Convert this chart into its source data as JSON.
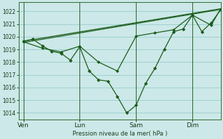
{
  "background_color": "#cce8e8",
  "grid_color": "#99cccc",
  "line_color": "#1a5c1a",
  "ylabel": "Pression niveau de la mer( hPa )",
  "ylim": [
    1013.5,
    1022.7
  ],
  "yticks": [
    1014,
    1015,
    1016,
    1017,
    1018,
    1019,
    1020,
    1021,
    1022
  ],
  "xtick_labels": [
    "Ven",
    "Lun",
    "Sam",
    "Dim"
  ],
  "xtick_positions": [
    0,
    24,
    48,
    72
  ],
  "xlim": [
    -2,
    84
  ],
  "vline_positions": [
    0,
    24,
    48,
    72
  ],
  "line1": {
    "x": [
      0,
      84
    ],
    "y": [
      1019.65,
      1022.2
    ]
  },
  "line2": {
    "x": [
      0,
      84
    ],
    "y": [
      1019.55,
      1022.15
    ]
  },
  "line3": {
    "x": [
      0,
      4,
      8,
      12,
      16,
      20,
      24,
      28,
      32,
      36,
      40,
      44,
      48,
      52,
      56,
      60,
      64,
      68,
      72,
      76,
      80,
      84
    ],
    "y": [
      1019.65,
      1019.8,
      1019.3,
      1018.85,
      1018.7,
      1018.15,
      1019.2,
      1017.3,
      1016.6,
      1016.5,
      1015.3,
      1014.0,
      1014.6,
      1016.3,
      1017.5,
      1019.0,
      1020.4,
      1020.6,
      1021.7,
      1020.4,
      1021.1,
      1022.1
    ]
  },
  "line4": {
    "x": [
      0,
      8,
      16,
      24,
      32,
      40,
      48,
      56,
      64,
      72,
      80,
      84
    ],
    "y": [
      1019.6,
      1019.1,
      1018.8,
      1019.25,
      1018.0,
      1017.3,
      1020.05,
      1020.3,
      1020.55,
      1021.7,
      1020.9,
      1022.2
    ]
  }
}
